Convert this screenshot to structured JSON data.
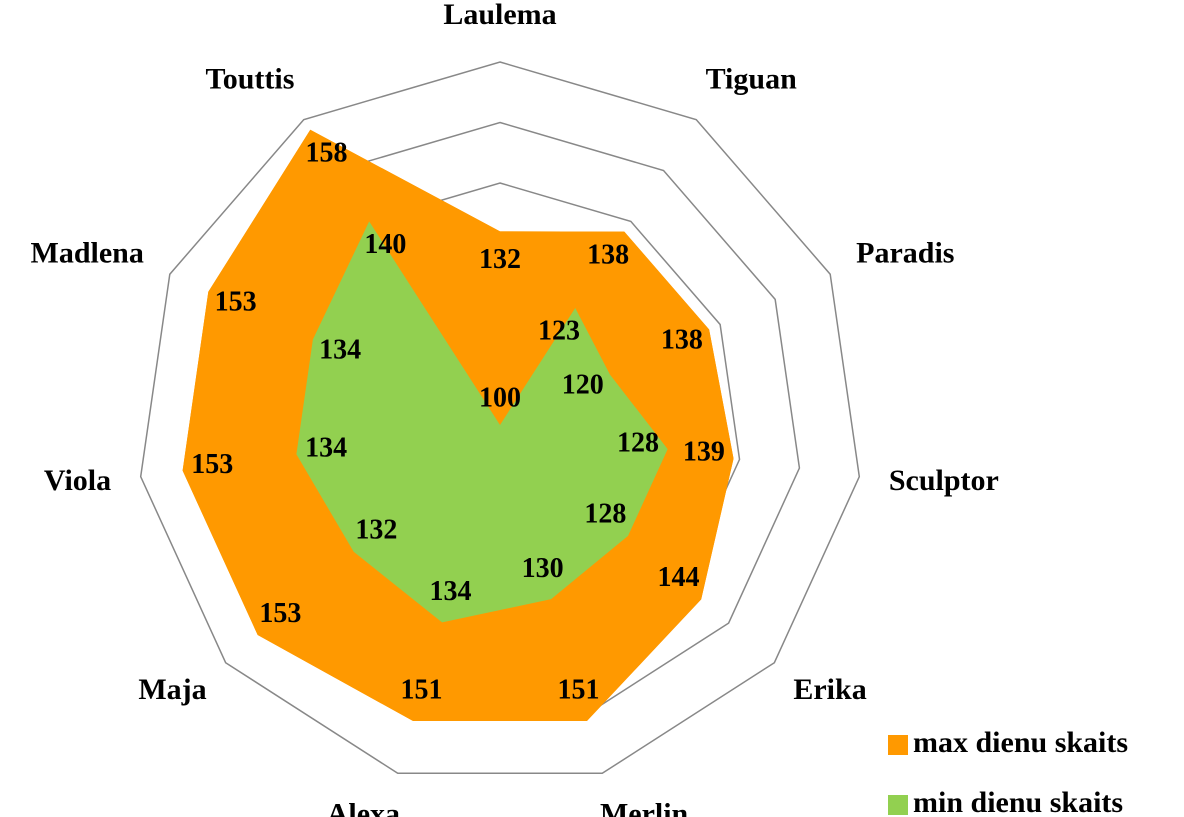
{
  "chart_data": {
    "type": "radar",
    "categories": [
      "Laulema",
      "Tiguan",
      "Paradis",
      "Sculptor",
      "Erika",
      "Merlin",
      "Alexa",
      "Maja",
      "Viola",
      "Madlena",
      "Touttis"
    ],
    "series": [
      {
        "name": "max dienu skaits",
        "color": "#ff9900",
        "values": [
          132,
          138,
          138,
          139,
          144,
          151,
          151,
          153,
          153,
          153,
          158
        ]
      },
      {
        "name": "min dienu skaits",
        "color": "#92d050",
        "values": [
          100,
          123,
          120,
          128,
          128,
          130,
          134,
          132,
          134,
          134,
          140
        ]
      }
    ],
    "ylim": [
      100,
      160
    ],
    "yticks": [
      100,
      110,
      120,
      130,
      140,
      150,
      160
    ],
    "grid": true,
    "legend": "lower right"
  }
}
